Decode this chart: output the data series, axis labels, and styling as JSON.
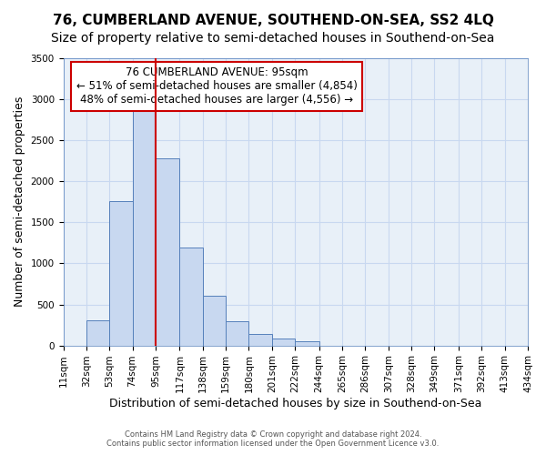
{
  "title": "76, CUMBERLAND AVENUE, SOUTHEND-ON-SEA, SS2 4LQ",
  "subtitle": "Size of property relative to semi-detached houses in Southend-on-Sea",
  "xlabel": "Distribution of semi-detached houses by size in Southend-on-Sea",
  "ylabel": "Number of semi-detached properties",
  "footer_line1": "Contains HM Land Registry data © Crown copyright and database right 2024.",
  "footer_line2": "Contains public sector information licensed under the Open Government Licence v3.0.",
  "bar_values": [
    0,
    310,
    1760,
    2920,
    2280,
    1190,
    610,
    300,
    140,
    80,
    50,
    0,
    0,
    0,
    0,
    0,
    0,
    0,
    0,
    0
  ],
  "bin_edges": [
    11,
    32,
    53,
    74,
    95,
    117,
    138,
    159,
    180,
    201,
    222,
    244,
    265,
    286,
    307,
    328,
    349,
    371,
    392,
    413,
    434
  ],
  "tick_labels": [
    "11sqm",
    "32sqm",
    "53sqm",
    "74sqm",
    "95sqm",
    "117sqm",
    "138sqm",
    "159sqm",
    "180sqm",
    "201sqm",
    "222sqm",
    "244sqm",
    "265sqm",
    "286sqm",
    "307sqm",
    "328sqm",
    "349sqm",
    "371sqm",
    "392sqm",
    "413sqm",
    "434sqm"
  ],
  "ylim": [
    0,
    3500
  ],
  "yticks": [
    0,
    500,
    1000,
    1500,
    2000,
    2500,
    3000,
    3500
  ],
  "bar_color": "#c8d8f0",
  "bar_edge_color": "#5580bb",
  "property_line_x": 95,
  "property_line_color": "#cc0000",
  "annotation_text": "76 CUMBERLAND AVENUE: 95sqm\n← 51% of semi-detached houses are smaller (4,854)\n48% of semi-detached houses are larger (4,556) →",
  "annotation_box_color": "#ffffff",
  "annotation_box_edge_color": "#cc0000",
  "bg_color": "#ffffff",
  "ax_bg_color": "#e8f0f8",
  "grid_color": "#c8d8f0",
  "title_fontsize": 11,
  "subtitle_fontsize": 10,
  "xlabel_fontsize": 9,
  "ylabel_fontsize": 9,
  "tick_fontsize": 7.5,
  "annotation_fontsize": 8.5
}
